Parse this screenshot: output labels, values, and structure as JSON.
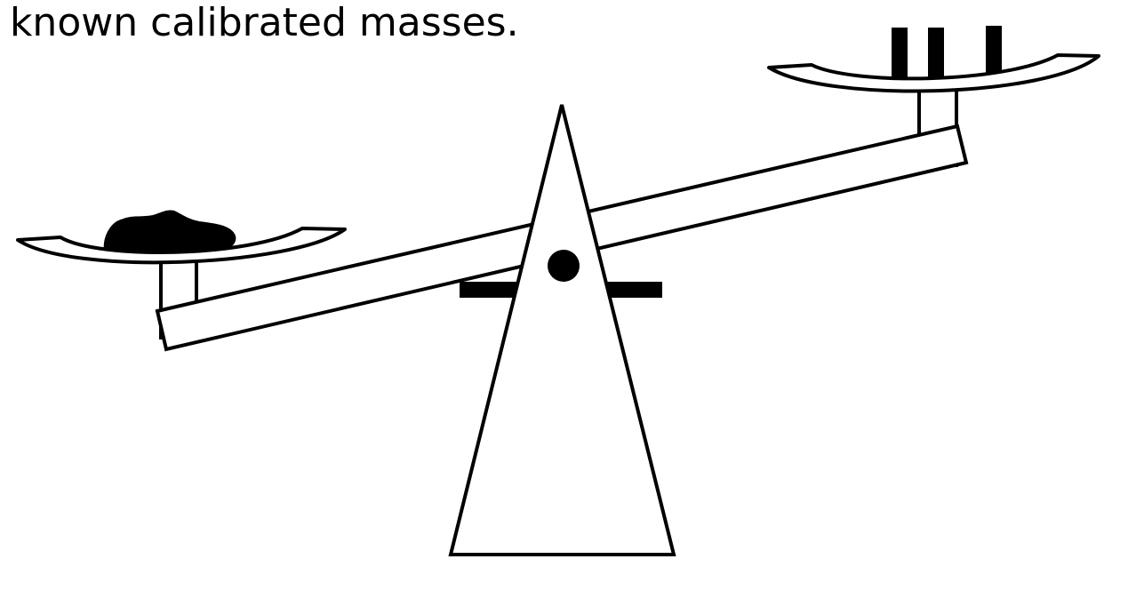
{
  "caption": "a known calibrated masses.",
  "diagram": {
    "stroke_color": "#000000",
    "fill_color": "#ffffff",
    "left_pan_contents": "unknown-object",
    "right_pan_contents": "calibrated-masses",
    "calibrated_mass_count": 3,
    "tilt": "right-side-up"
  }
}
